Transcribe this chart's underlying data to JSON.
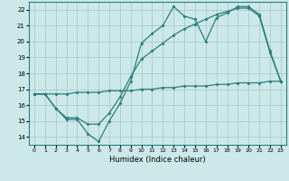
{
  "bg_color": "#cce8e8",
  "grid_color": "#aacccc",
  "line_color": "#2d7d7d",
  "xlabel": "Humidex (Indice chaleur)",
  "xlim": [
    -0.5,
    23.5
  ],
  "ylim": [
    13.5,
    22.5
  ],
  "yticks": [
    14,
    15,
    16,
    17,
    18,
    19,
    20,
    21,
    22
  ],
  "xticks": [
    0,
    1,
    2,
    3,
    4,
    5,
    6,
    7,
    8,
    9,
    10,
    11,
    12,
    13,
    14,
    15,
    16,
    17,
    18,
    19,
    20,
    21,
    22,
    23
  ],
  "line1_x": [
    0,
    1,
    2,
    3,
    4,
    5,
    6,
    7,
    8,
    9,
    10,
    11,
    12,
    13,
    14,
    15,
    16,
    17,
    18,
    19,
    20,
    21,
    22,
    23
  ],
  "line1_y": [
    16.7,
    16.7,
    15.8,
    15.1,
    15.1,
    14.2,
    13.7,
    15.0,
    16.1,
    17.5,
    19.9,
    20.5,
    21.0,
    22.2,
    21.6,
    21.4,
    20.0,
    21.5,
    21.8,
    22.2,
    22.2,
    21.7,
    19.4,
    17.5
  ],
  "line2_x": [
    0,
    1,
    2,
    3,
    4,
    5,
    6,
    7,
    8,
    9,
    10,
    11,
    12,
    13,
    14,
    15,
    16,
    17,
    18,
    19,
    20,
    21,
    22,
    23
  ],
  "line2_y": [
    16.7,
    16.7,
    15.8,
    15.2,
    15.2,
    14.8,
    14.8,
    15.5,
    16.5,
    17.8,
    18.9,
    19.4,
    19.9,
    20.4,
    20.8,
    21.1,
    21.4,
    21.7,
    21.9,
    22.1,
    22.1,
    21.6,
    19.3,
    17.5
  ],
  "line3_x": [
    0,
    1,
    2,
    3,
    4,
    5,
    6,
    7,
    8,
    9,
    10,
    11,
    12,
    13,
    14,
    15,
    16,
    17,
    18,
    19,
    20,
    21,
    22,
    23
  ],
  "line3_y": [
    16.7,
    16.7,
    16.7,
    16.7,
    16.8,
    16.8,
    16.8,
    16.9,
    16.9,
    16.9,
    17.0,
    17.0,
    17.1,
    17.1,
    17.2,
    17.2,
    17.2,
    17.3,
    17.3,
    17.4,
    17.4,
    17.4,
    17.5,
    17.5
  ]
}
